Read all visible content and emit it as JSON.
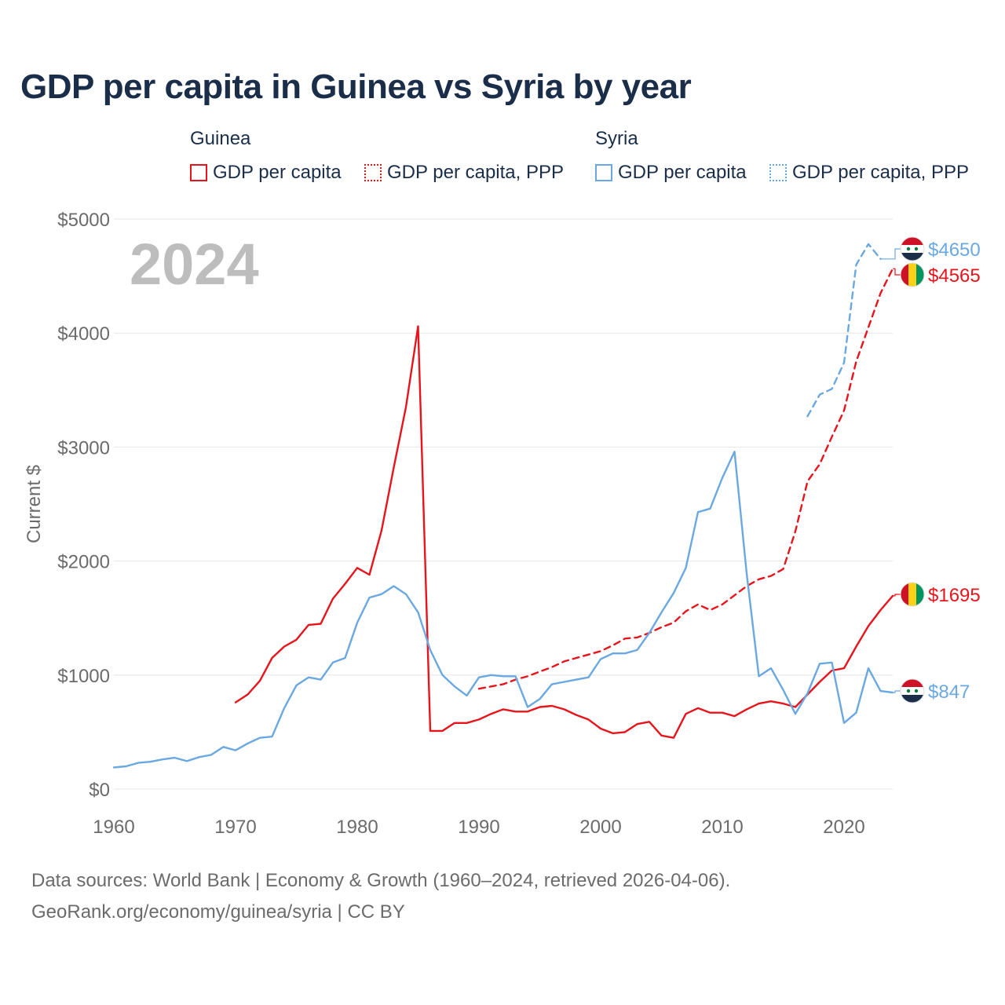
{
  "colors": {
    "guinea": "#e8141c",
    "syria": "#6aa8e2",
    "title": "#1a2e4a",
    "axis_text": "#6b6b6b",
    "year": "#bdbdbd"
  },
  "legend": {
    "groups": [
      {
        "name": "Guinea",
        "items": [
          "GDP per capita",
          "GDP per capita, PPP"
        ]
      },
      {
        "name": "Syria",
        "items": [
          "GDP per capita",
          "GDP per capita, PPP"
        ]
      }
    ]
  },
  "footer": {
    "line1": "Data sources: World Bank | Economy & Growth (1960–2024, retrieved 2026-04-06).",
    "line2": "GeoRank.org/economy/guinea/syria | CC BY"
  },
  "chart_data": {
    "type": "line",
    "title": "GDP per capita in Guinea vs Syria by year",
    "year_label": "2024",
    "ylabel": "Current $",
    "xlabel": "",
    "xlim": [
      1960,
      2024
    ],
    "ylim": [
      0,
      5000
    ],
    "x_ticks": [
      1960,
      1970,
      1980,
      1990,
      2000,
      2010,
      2020
    ],
    "y_ticks": [
      0,
      1000,
      2000,
      3000,
      4000,
      5000
    ],
    "y_tick_labels": [
      "$0",
      "$1000",
      "$2000",
      "$3000",
      "$4000",
      "$5000"
    ],
    "grid": true,
    "series": [
      {
        "name": "Guinea GDP per capita",
        "country": "guinea",
        "style": "solid",
        "end_label": "$1695",
        "x": [
          1970,
          1971,
          1972,
          1973,
          1974,
          1975,
          1976,
          1977,
          1978,
          1979,
          1980,
          1981,
          1982,
          1983,
          1984,
          1985,
          1986,
          1987,
          1988,
          1989,
          1990,
          1991,
          1992,
          1993,
          1994,
          1995,
          1996,
          1997,
          1998,
          1999,
          2000,
          2001,
          2002,
          2003,
          2004,
          2005,
          2006,
          2007,
          2008,
          2009,
          2010,
          2011,
          2012,
          2013,
          2014,
          2015,
          2016,
          2017,
          2018,
          2019,
          2020,
          2021,
          2022,
          2023,
          2024
        ],
        "y": [
          760,
          830,
          950,
          1150,
          1250,
          1310,
          1440,
          1450,
          1670,
          1800,
          1940,
          1880,
          2270,
          2820,
          3350,
          4060,
          510,
          510,
          580,
          580,
          610,
          660,
          700,
          680,
          680,
          720,
          730,
          700,
          650,
          610,
          530,
          490,
          500,
          570,
          590,
          470,
          450,
          660,
          710,
          670,
          670,
          640,
          700,
          750,
          770,
          750,
          720,
          830,
          940,
          1040,
          1060,
          1250,
          1430,
          1570,
          1695
        ]
      },
      {
        "name": "Guinea GDP per capita, PPP",
        "country": "guinea",
        "style": "dashed",
        "end_label": "$4565",
        "x": [
          1990,
          1991,
          1992,
          1993,
          1994,
          1995,
          1996,
          1997,
          1998,
          1999,
          2000,
          2001,
          2002,
          2003,
          2004,
          2005,
          2006,
          2007,
          2008,
          2009,
          2010,
          2011,
          2012,
          2013,
          2014,
          2015,
          2016,
          2017,
          2018,
          2019,
          2020,
          2021,
          2022,
          2023,
          2024
        ],
        "y": [
          880,
          900,
          920,
          960,
          990,
          1030,
          1070,
          1120,
          1150,
          1180,
          1210,
          1260,
          1320,
          1330,
          1370,
          1420,
          1460,
          1560,
          1620,
          1570,
          1620,
          1700,
          1780,
          1840,
          1870,
          1930,
          2260,
          2700,
          2850,
          3090,
          3320,
          3750,
          4050,
          4350,
          4565
        ]
      },
      {
        "name": "Syria GDP per capita",
        "country": "syria",
        "style": "solid",
        "end_label": "$847",
        "x": [
          1960,
          1961,
          1962,
          1963,
          1964,
          1965,
          1966,
          1967,
          1968,
          1969,
          1970,
          1971,
          1972,
          1973,
          1974,
          1975,
          1976,
          1977,
          1978,
          1979,
          1980,
          1981,
          1982,
          1983,
          1984,
          1985,
          1986,
          1987,
          1988,
          1989,
          1990,
          1991,
          1992,
          1993,
          1994,
          1995,
          1996,
          1997,
          1998,
          1999,
          2000,
          2001,
          2002,
          2003,
          2004,
          2005,
          2006,
          2007,
          2008,
          2009,
          2010,
          2011,
          2012,
          2013,
          2014,
          2015,
          2016,
          2017,
          2018,
          2019,
          2020,
          2021,
          2022,
          2023,
          2024
        ],
        "y": [
          190,
          200,
          230,
          240,
          260,
          275,
          245,
          280,
          300,
          370,
          340,
          400,
          450,
          460,
          710,
          910,
          980,
          960,
          1110,
          1150,
          1460,
          1680,
          1710,
          1780,
          1710,
          1550,
          1220,
          1000,
          900,
          820,
          980,
          1000,
          990,
          990,
          720,
          790,
          920,
          940,
          960,
          980,
          1140,
          1190,
          1190,
          1220,
          1370,
          1550,
          1720,
          1940,
          2430,
          2460,
          2730,
          2960,
          1890,
          990,
          1060,
          870,
          660,
          840,
          1100,
          1110,
          580,
          670,
          1060,
          860,
          847
        ]
      },
      {
        "name": "Syria GDP per capita, PPP",
        "country": "syria",
        "style": "dashed",
        "end_label": "$4650",
        "x": [
          2017,
          2018,
          2019,
          2020,
          2021,
          2022,
          2023
        ],
        "y": [
          3270,
          3460,
          3510,
          3740,
          4600,
          4780,
          4650
        ]
      }
    ]
  }
}
